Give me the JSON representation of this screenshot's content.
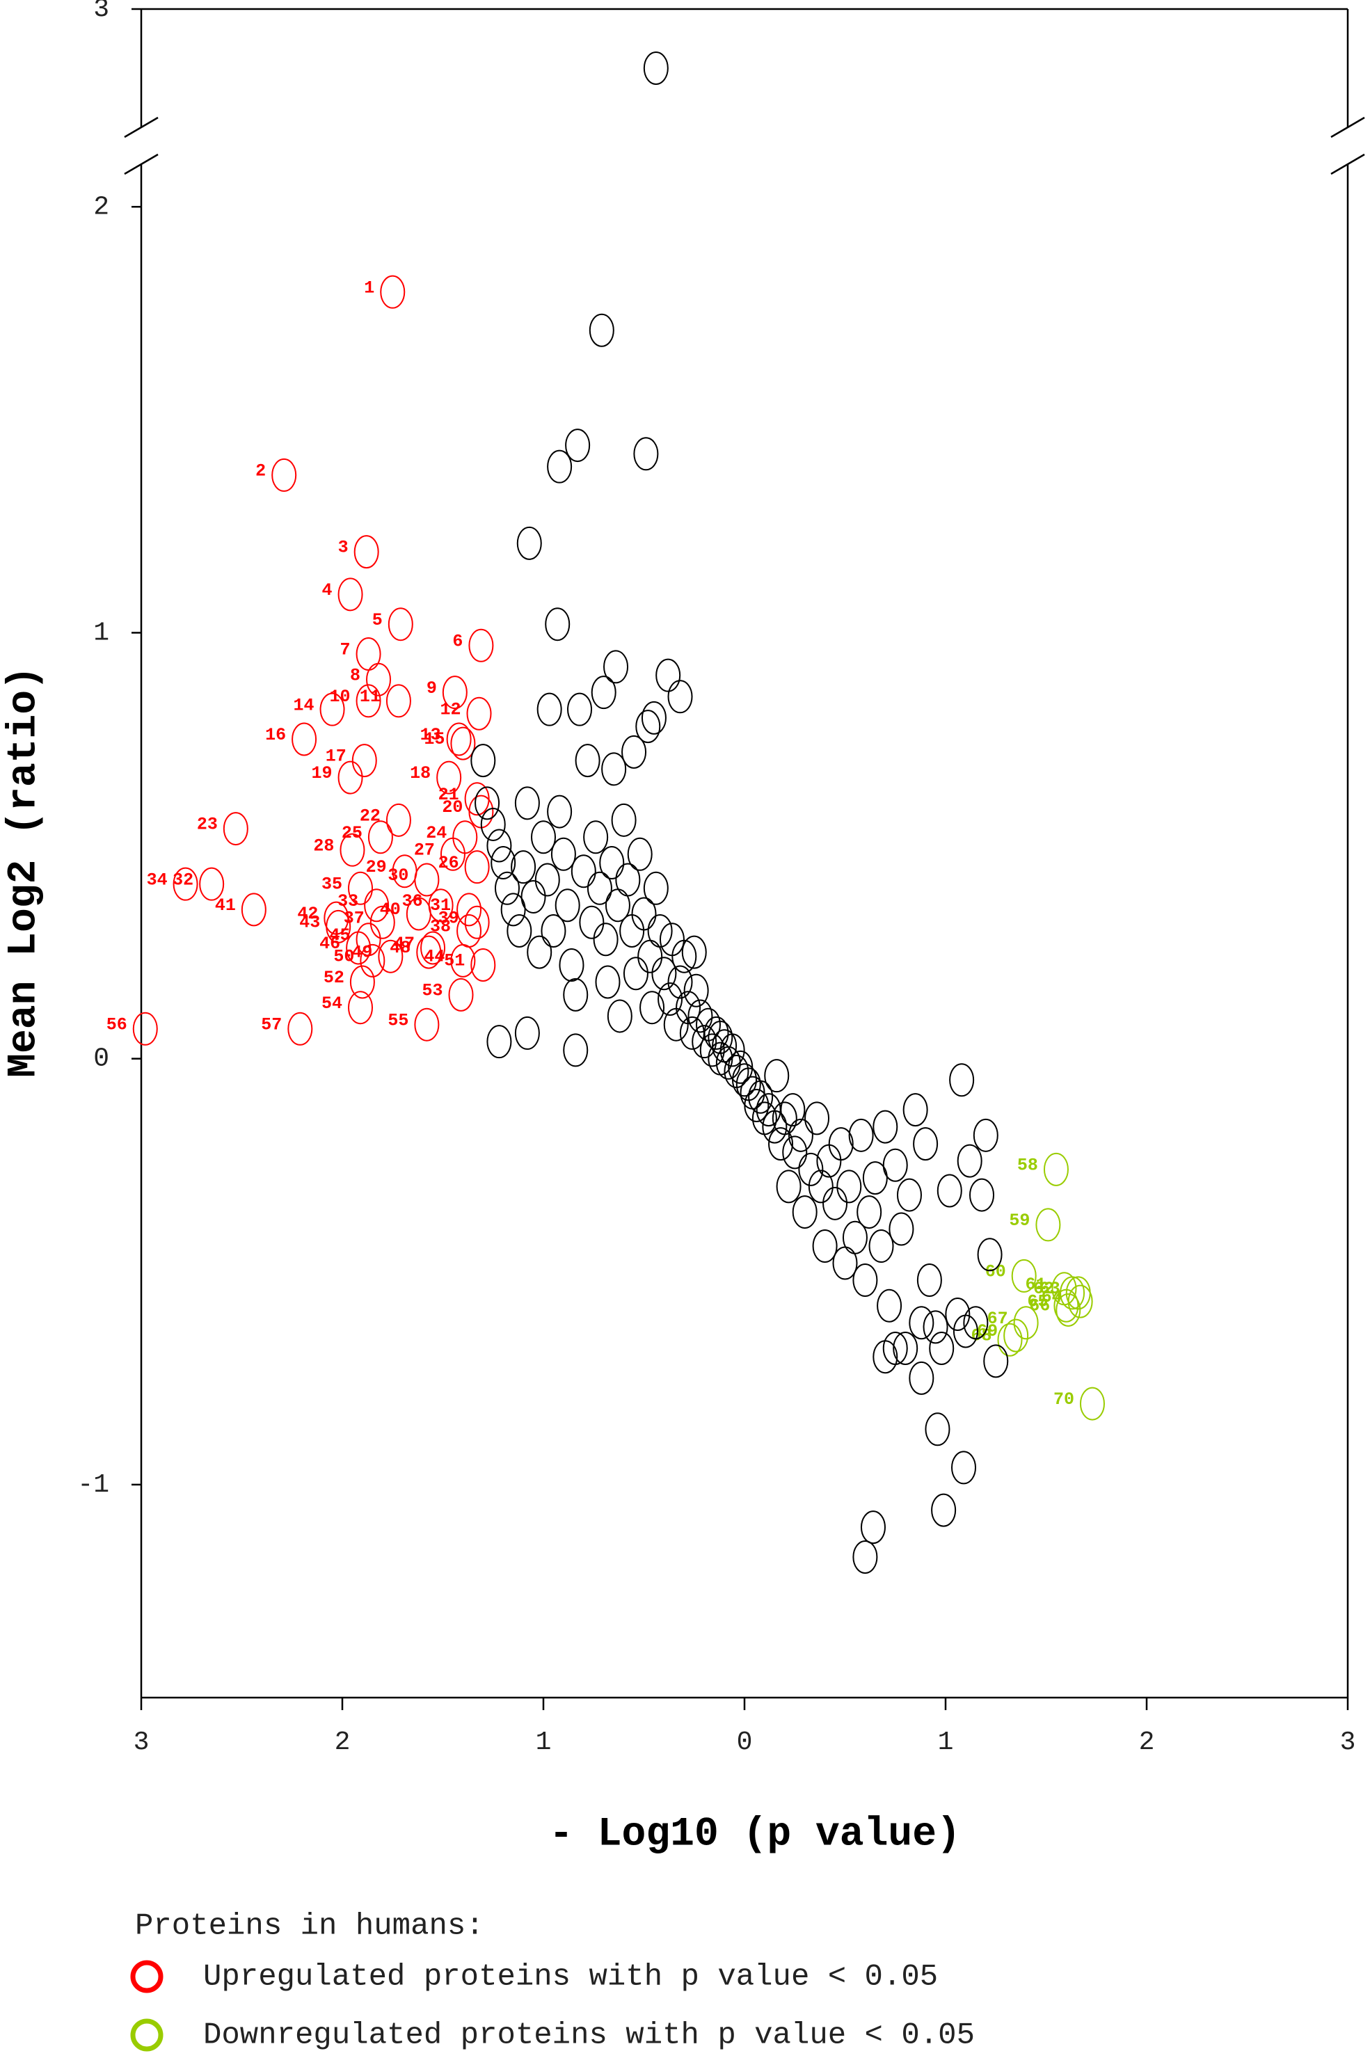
{
  "chart_data": {
    "type": "scatter",
    "x_label": "- Log10 (p value)",
    "y_label": "Mean Log2 (ratio)",
    "legend_title": "Proteins in humans:",
    "xlim": [
      -3,
      3
    ],
    "xticks": [
      {
        "value": -3,
        "label": "3"
      },
      {
        "value": -2,
        "label": "2"
      },
      {
        "value": -1,
        "label": "1"
      },
      0,
      1,
      2,
      3
    ],
    "ylim": [
      -1.5,
      3
    ],
    "ybreak": [
      2.1,
      2.7
    ],
    "yticks": [
      -1,
      0,
      1,
      2,
      3
    ],
    "series": [
      {
        "name": "Upregulated proteins with p value < 0.05",
        "color": "#ff0000",
        "labels": [
          "1",
          "2",
          "3",
          "4",
          "5",
          "6",
          "7",
          "8",
          "9",
          "10",
          "11",
          "12",
          "13",
          "14",
          "15",
          "16",
          "17",
          "18",
          "19",
          "20",
          "21",
          "22",
          "23",
          "24",
          "25",
          "26",
          "27",
          "28",
          "29",
          "30",
          "31",
          "32",
          "33",
          "34",
          "35",
          "36",
          "37",
          "38",
          "39",
          "40",
          "41",
          "42",
          "43",
          "44",
          "45",
          "46",
          "47",
          "48",
          "49",
          "50",
          "51",
          "52",
          "53",
          "54",
          "55",
          "56",
          "57"
        ],
        "x": [
          -1.75,
          -2.29,
          -1.88,
          -1.96,
          -1.71,
          -1.31,
          -1.87,
          -1.82,
          -1.44,
          -1.87,
          -1.72,
          -1.32,
          -1.42,
          -2.05,
          -1.4,
          -2.19,
          -1.89,
          -1.47,
          -1.96,
          -1.31,
          -1.33,
          -1.72,
          -2.53,
          -1.39,
          -1.81,
          -1.33,
          -1.45,
          -1.95,
          -1.69,
          -1.58,
          -1.37,
          -2.65,
          -1.83,
          -2.78,
          -1.91,
          -1.51,
          -1.8,
          -1.37,
          -1.33,
          -1.62,
          -2.44,
          -2.03,
          -2.02,
          -1.4,
          -1.87,
          -1.92,
          -1.55,
          -1.57,
          -1.76,
          -1.85,
          -1.3,
          -1.9,
          -1.41,
          -1.91,
          -1.58,
          -2.98,
          -2.21
        ],
        "values": [
          1.8,
          1.37,
          1.19,
          1.09,
          1.02,
          0.97,
          0.95,
          0.89,
          0.86,
          0.84,
          0.84,
          0.81,
          0.75,
          0.82,
          0.74,
          0.75,
          0.7,
          0.66,
          0.66,
          0.58,
          0.61,
          0.56,
          0.54,
          0.52,
          0.52,
          0.45,
          0.48,
          0.49,
          0.44,
          0.42,
          0.35,
          0.41,
          0.36,
          0.41,
          0.4,
          0.36,
          0.32,
          0.3,
          0.32,
          0.34,
          0.35,
          0.33,
          0.31,
          0.23,
          0.28,
          0.26,
          0.26,
          0.25,
          0.24,
          0.23,
          0.22,
          0.18,
          0.15,
          0.12,
          0.08,
          0.07,
          0.07
        ]
      },
      {
        "name": "Downregulated proteins with p value < 0.05",
        "color": "#99cc00",
        "labels": [
          "58",
          "59",
          "60",
          "61",
          "62",
          "63",
          "64",
          "65",
          "66",
          "67",
          "68",
          "69",
          "70"
        ],
        "x": [
          1.55,
          1.51,
          1.39,
          1.59,
          1.63,
          1.66,
          1.67,
          1.6,
          1.61,
          1.4,
          1.32,
          1.35,
          1.73
        ],
        "values": [
          -0.26,
          -0.39,
          -0.51,
          -0.54,
          -0.55,
          -0.55,
          -0.57,
          -0.58,
          -0.59,
          -0.62,
          -0.66,
          -0.65,
          -0.81
        ]
      },
      {
        "color": "#000000",
        "x": [
          -1.3,
          -1.28,
          -1.25,
          -1.22,
          -1.2,
          -1.18,
          -1.15,
          -1.12,
          -1.1,
          -1.08,
          -1.05,
          -1.02,
          -1.0,
          -0.98,
          -0.95,
          -0.93,
          -0.92,
          -0.9,
          -0.88,
          -0.86,
          -0.84,
          -0.82,
          -0.8,
          -0.78,
          -0.76,
          -0.74,
          -0.72,
          -0.7,
          -0.69,
          -0.68,
          -0.66,
          -0.64,
          -0.63,
          -0.62,
          -0.6,
          -0.58,
          -0.56,
          -0.55,
          -0.54,
          -0.52,
          -0.5,
          -0.48,
          -0.47,
          -0.46,
          -0.44,
          -0.42,
          -0.4,
          -0.38,
          -0.37,
          -0.36,
          -0.34,
          -0.32,
          -0.3,
          -0.28,
          -0.26,
          -0.24,
          -0.22,
          -0.2,
          -0.18,
          -0.16,
          -0.14,
          -0.12,
          -0.1,
          -0.08,
          -0.06,
          -0.04,
          -0.02,
          0.0,
          -0.97,
          -0.65,
          -1.22,
          -1.08,
          -0.84,
          -0.25,
          -0.12,
          0.02,
          0.04,
          0.06,
          0.08,
          0.1,
          0.12,
          0.15,
          0.18,
          0.2,
          0.22,
          0.25,
          0.28,
          0.3,
          0.33,
          0.36,
          0.38,
          0.4,
          0.42,
          0.45,
          0.48,
          0.5,
          0.52,
          0.55,
          0.58,
          0.6,
          0.62,
          0.65,
          0.68,
          0.7,
          0.72,
          0.75,
          0.78,
          0.8,
          0.82,
          0.85,
          0.88,
          0.9,
          0.92,
          0.95,
          0.98,
          1.02,
          1.06,
          1.1,
          1.12,
          1.15,
          1.18,
          1.2,
          1.22,
          1.25,
          0.6,
          0.64,
          0.99,
          1.09,
          0.96,
          0.88,
          0.7,
          0.75,
          1.08,
          0.16,
          0.24,
          -0.44,
          -0.71,
          -0.49,
          -0.83,
          -0.92,
          -1.07,
          -0.32,
          -0.45
        ],
        "values": [
          0.7,
          0.6,
          0.55,
          0.5,
          0.46,
          0.4,
          0.35,
          0.3,
          0.45,
          0.6,
          0.38,
          0.25,
          0.52,
          0.42,
          0.3,
          1.02,
          0.58,
          0.48,
          0.36,
          0.22,
          0.15,
          0.82,
          0.44,
          0.7,
          0.32,
          0.52,
          0.4,
          0.86,
          0.28,
          0.18,
          0.46,
          0.92,
          0.36,
          0.1,
          0.56,
          0.42,
          0.3,
          0.72,
          0.2,
          0.48,
          0.34,
          0.78,
          0.24,
          0.12,
          0.4,
          0.3,
          0.2,
          0.9,
          0.14,
          0.28,
          0.08,
          0.18,
          0.24,
          0.12,
          0.06,
          0.16,
          0.1,
          0.04,
          0.08,
          0.02,
          0.06,
          0.0,
          0.03,
          -0.01,
          0.02,
          -0.03,
          -0.02,
          -0.05,
          0.82,
          0.68,
          0.04,
          0.06,
          0.02,
          0.25,
          0.05,
          -0.06,
          -0.08,
          -0.11,
          -0.09,
          -0.14,
          -0.12,
          -0.16,
          -0.2,
          -0.14,
          -0.3,
          -0.22,
          -0.18,
          -0.36,
          -0.26,
          -0.14,
          -0.3,
          -0.44,
          -0.24,
          -0.34,
          -0.2,
          -0.48,
          -0.3,
          -0.42,
          -0.18,
          -0.52,
          -0.36,
          -0.28,
          -0.44,
          -0.16,
          -0.58,
          -0.25,
          -0.4,
          -0.68,
          -0.32,
          -0.12,
          -0.62,
          -0.2,
          -0.52,
          -0.63,
          -0.68,
          -0.31,
          -0.6,
          -0.64,
          -0.24,
          -0.62,
          -0.32,
          -0.18,
          -0.46,
          -0.71,
          -1.17,
          -1.1,
          -1.06,
          -0.96,
          -0.87,
          -0.75,
          -0.7,
          -0.68,
          -0.05,
          -0.04,
          -0.12,
          2.85,
          1.71,
          1.42,
          1.44,
          1.39,
          1.21,
          0.85,
          0.8
        ]
      }
    ]
  }
}
